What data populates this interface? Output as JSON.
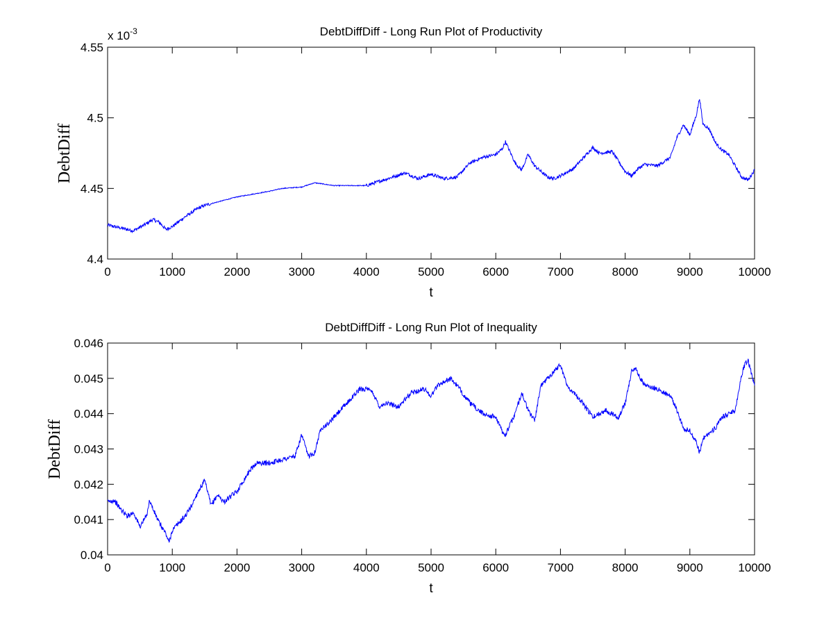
{
  "chart_data": [
    {
      "type": "line",
      "title": "DebtDiffDiff - Long Run Plot of Productivity",
      "xlabel": "t",
      "ylabel": "DebtDiff",
      "xlim": [
        0,
        10000
      ],
      "ylim": [
        0.0044,
        0.00455
      ],
      "x_ticks": [
        "0",
        "1000",
        "2000",
        "3000",
        "4000",
        "5000",
        "6000",
        "7000",
        "8000",
        "9000",
        "10000"
      ],
      "y_ticks": [
        "4.4",
        "4.45",
        "4.5",
        "4.55"
      ],
      "y_exponent": "x 10",
      "y_exponent_power": "-3",
      "line_color": "#0000ff",
      "grid": false,
      "series": [
        {
          "x": [
            0,
            200,
            400,
            600,
            700,
            800,
            900,
            1000,
            1200,
            1400,
            1500,
            2000,
            2500,
            2700,
            3000,
            3200,
            3500,
            4000,
            4200,
            4400,
            4600,
            4800,
            5000,
            5200,
            5400,
            5600,
            5800,
            6000,
            6100,
            6150,
            6200,
            6300,
            6400,
            6500,
            6600,
            6800,
            6900,
            7000,
            7200,
            7400,
            7500,
            7600,
            7800,
            8000,
            8100,
            8200,
            8300,
            8500,
            8700,
            8800,
            8900,
            9000,
            9100,
            9150,
            9200,
            9300,
            9400,
            9500,
            9600,
            9700,
            9800,
            9900,
            10000
          ],
          "values": [
            0.004424,
            0.004422,
            0.00442,
            0.004425,
            0.004428,
            0.004426,
            0.004421,
            0.004423,
            0.00443,
            0.004436,
            0.004438,
            0.004444,
            0.004448,
            0.00445,
            0.004451,
            0.004454,
            0.004452,
            0.004452,
            0.004455,
            0.004458,
            0.004461,
            0.004457,
            0.00446,
            0.004457,
            0.004458,
            0.004468,
            0.004472,
            0.004474,
            0.004478,
            0.004483,
            0.004478,
            0.004468,
            0.004463,
            0.004474,
            0.004466,
            0.004458,
            0.004457,
            0.004459,
            0.004464,
            0.004474,
            0.004479,
            0.004475,
            0.004476,
            0.004462,
            0.004459,
            0.004464,
            0.004467,
            0.004466,
            0.004472,
            0.004486,
            0.004495,
            0.004488,
            0.004502,
            0.004514,
            0.004496,
            0.004492,
            0.004482,
            0.004477,
            0.004474,
            0.004466,
            0.004458,
            0.004456,
            0.004463
          ]
        }
      ]
    },
    {
      "type": "line",
      "title": "DebtDiffDiff - Long Run Plot of Inequality",
      "xlabel": "t",
      "ylabel": "DebtDiff",
      "xlim": [
        0,
        10000
      ],
      "ylim": [
        0.04,
        0.046
      ],
      "x_ticks": [
        "0",
        "1000",
        "2000",
        "3000",
        "4000",
        "5000",
        "6000",
        "7000",
        "8000",
        "9000",
        "10000"
      ],
      "y_ticks": [
        "0.04",
        "0.041",
        "0.042",
        "0.043",
        "0.044",
        "0.045",
        "0.046"
      ],
      "line_color": "#0000ff",
      "grid": false,
      "series": [
        {
          "x": [
            0,
            100,
            200,
            300,
            400,
            500,
            600,
            650,
            700,
            800,
            900,
            950,
            1000,
            1100,
            1200,
            1300,
            1400,
            1500,
            1600,
            1700,
            1800,
            2000,
            2200,
            2300,
            2500,
            2700,
            2900,
            3000,
            3100,
            3200,
            3300,
            3400,
            3500,
            3700,
            3900,
            4000,
            4100,
            4200,
            4300,
            4500,
            4700,
            4900,
            5000,
            5100,
            5300,
            5400,
            5600,
            5800,
            6000,
            6100,
            6150,
            6300,
            6400,
            6500,
            6600,
            6700,
            6900,
            7000,
            7100,
            7300,
            7500,
            7700,
            7900,
            8000,
            8100,
            8150,
            8300,
            8500,
            8700,
            8800,
            8900,
            9000,
            9100,
            9150,
            9200,
            9400,
            9500,
            9600,
            9700,
            9800,
            9850,
            9900,
            10000
          ],
          "values": [
            0.0415,
            0.04155,
            0.0413,
            0.0411,
            0.0412,
            0.0408,
            0.0411,
            0.04155,
            0.0413,
            0.0409,
            0.0406,
            0.04035,
            0.0407,
            0.0409,
            0.0411,
            0.0414,
            0.0418,
            0.0421,
            0.0414,
            0.0417,
            0.0415,
            0.0418,
            0.0424,
            0.0426,
            0.0426,
            0.0427,
            0.0428,
            0.0434,
            0.0428,
            0.0429,
            0.0436,
            0.0437,
            0.0439,
            0.0443,
            0.0447,
            0.0447,
            0.0446,
            0.0442,
            0.0443,
            0.0442,
            0.0446,
            0.0447,
            0.0445,
            0.0448,
            0.045,
            0.0448,
            0.0443,
            0.044,
            0.0439,
            0.0435,
            0.0434,
            0.044,
            0.0446,
            0.0441,
            0.0438,
            0.0448,
            0.0452,
            0.0454,
            0.0448,
            0.0444,
            0.0439,
            0.0441,
            0.0439,
            0.0443,
            0.0452,
            0.0453,
            0.0448,
            0.0447,
            0.0445,
            0.0441,
            0.0436,
            0.0435,
            0.0432,
            0.0429,
            0.0433,
            0.0436,
            0.0439,
            0.044,
            0.0441,
            0.0451,
            0.0454,
            0.0455,
            0.0448
          ]
        }
      ]
    }
  ]
}
